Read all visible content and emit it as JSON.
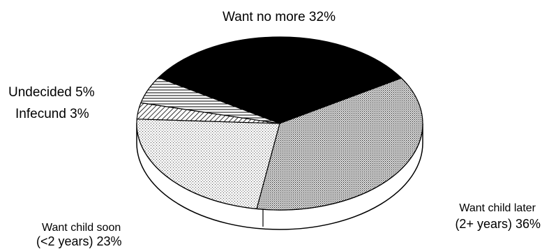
{
  "chart_data": {
    "type": "pie",
    "title": "",
    "slices": [
      {
        "label": "Want no more",
        "value": 32,
        "fill": "black"
      },
      {
        "label": "Want child later (2+ years)",
        "value": 36,
        "fill": "dense-crosshatch"
      },
      {
        "label": "Want child soon (<2 years)",
        "value": 23,
        "fill": "light-dots"
      },
      {
        "label": "Infecund",
        "value": 3,
        "fill": "diagonal-hatch"
      },
      {
        "label": "Undecided",
        "value": 5,
        "fill": "horizontal-lines"
      }
    ],
    "labels": {
      "want_no_more": "Want no more  32%",
      "want_later_1": "Want child later",
      "want_later_2": "(2+ years)  36%",
      "want_soon_1": "Want child soon",
      "want_soon_2": "(<2 years)  23%",
      "infecund": "Infecund  3%",
      "undecided": "Undecided  5%"
    },
    "colors": {
      "ink": "#000000",
      "background": "#ffffff"
    }
  }
}
